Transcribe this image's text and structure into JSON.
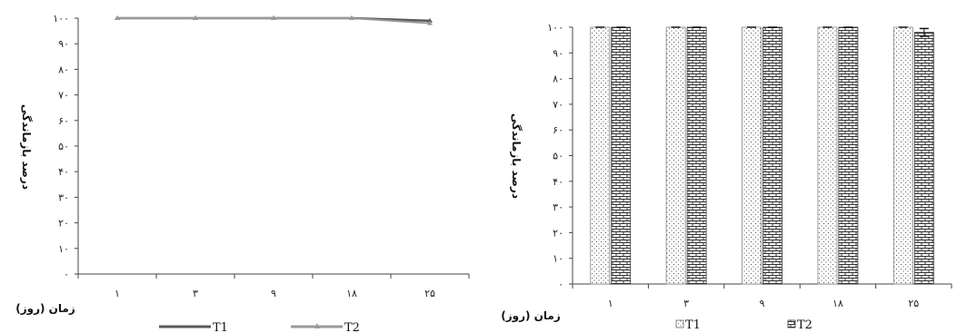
{
  "chart_data": [
    {
      "type": "line",
      "categories": [
        "۱",
        "۳",
        "۹",
        "۱۸",
        "۲۵"
      ],
      "ylim": [
        0,
        100
      ],
      "yticks": [
        "۰",
        "۱۰",
        "۲۰",
        "۳۰",
        "۴۰",
        "۵۰",
        "۶۰",
        "۷۰",
        "۸۰",
        "۹۰",
        "۱۰۰"
      ],
      "xlabel": "زمان (روز)",
      "ylabel": "درصد بازماندگی",
      "legend_placement": "bottom",
      "series": [
        {
          "name": "T1",
          "values": [
            100,
            100,
            100,
            100,
            99
          ],
          "color": "#5a5a5a"
        },
        {
          "name": "T2",
          "values": [
            100,
            100,
            100,
            100,
            98
          ],
          "color": "#9a9a9a"
        }
      ]
    },
    {
      "type": "bar",
      "categories": [
        "۱",
        "۳",
        "۹",
        "۱۸",
        "۲۵"
      ],
      "ylim": [
        0,
        100
      ],
      "yticks": [
        "۰",
        "۱۰",
        "۲۰",
        "۳۰",
        "۴۰",
        "۵۰",
        "۶۰",
        "۷۰",
        "۸۰",
        "۹۰",
        "۱۰۰"
      ],
      "xlabel": "زمان (روز)",
      "ylabel": "درصد بازماندگی",
      "legend_placement": "bottom",
      "series": [
        {
          "name": "T1",
          "values": [
            100,
            100,
            100,
            100,
            100
          ],
          "pattern": "dots"
        },
        {
          "name": "T2",
          "values": [
            100,
            100,
            100,
            100,
            98
          ],
          "pattern": "bricks",
          "error": [
            0,
            0,
            0,
            0,
            1.5
          ]
        }
      ]
    }
  ]
}
